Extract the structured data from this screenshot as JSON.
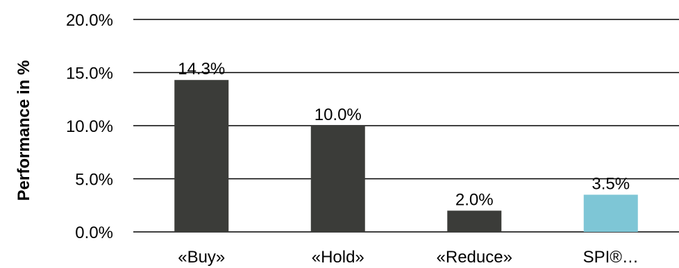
{
  "chart_data": {
    "type": "bar",
    "title": "",
    "xlabel": "",
    "ylabel": "Performance in %",
    "ylim": [
      0,
      20
    ],
    "yticks": [
      {
        "value": 0,
        "label": "0.0%"
      },
      {
        "value": 5,
        "label": "5.0%"
      },
      {
        "value": 10,
        "label": "10.0%"
      },
      {
        "value": 15,
        "label": "15.0%"
      },
      {
        "value": 20,
        "label": "20.0%"
      }
    ],
    "grid": true,
    "legend": "none",
    "categories": [
      "«Buy»",
      "«Hold»",
      "«Reduce»",
      "SPI®…"
    ],
    "values": [
      14.3,
      10.0,
      2.0,
      3.5
    ],
    "data_labels": [
      "14.3%",
      "10.0%",
      "2.0%",
      "3.5%"
    ],
    "colors": [
      "#3b3c39",
      "#3b3c39",
      "#3b3c39",
      "#7ec6d6"
    ]
  }
}
